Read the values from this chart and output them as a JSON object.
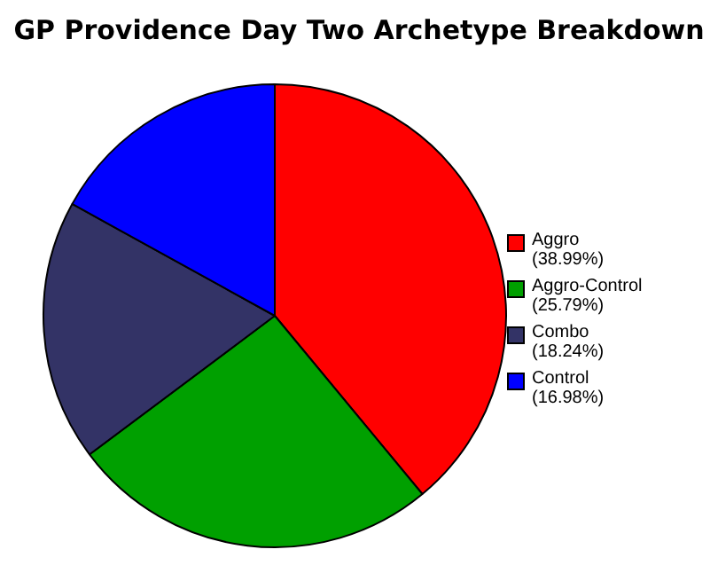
{
  "chart_data": {
    "type": "pie",
    "title": "GP Providence Day Two Archetype Breakdown",
    "categories": [
      "Aggro",
      "Aggro-Control",
      "Combo",
      "Control"
    ],
    "values": [
      38.99,
      25.79,
      18.24,
      16.98
    ],
    "value_labels": [
      "(38.99%)",
      "(25.79%)",
      "(18.24%)",
      "(16.98%)"
    ],
    "colors": [
      "#ff0000",
      "#00a000",
      "#333366",
      "#0000ff"
    ],
    "legend": "right"
  }
}
